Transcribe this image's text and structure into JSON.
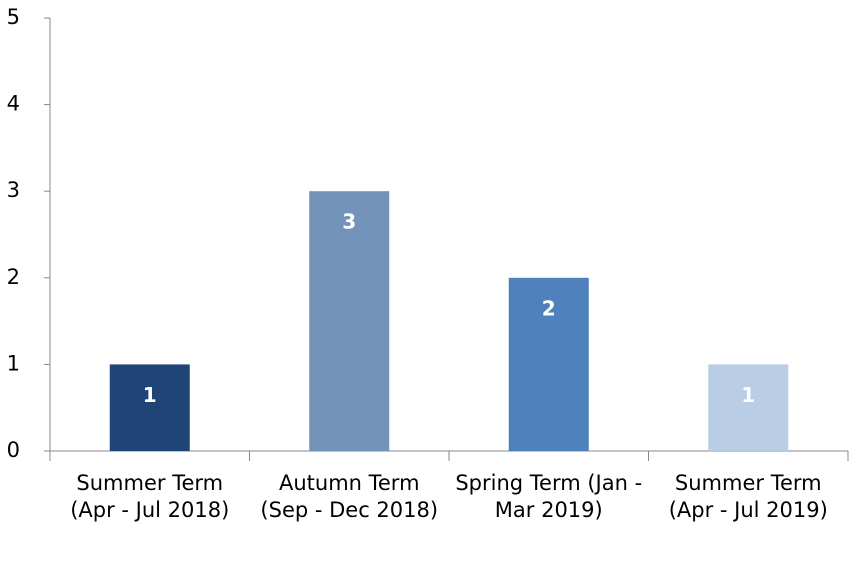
{
  "chart_data": {
    "type": "bar",
    "categories": [
      "Summer Term (Apr - Jul 2018)",
      "Autumn Term (Sep - Dec 2018)",
      "Spring Term (Jan - Mar 2019)",
      "Summer Term (Apr - Jul 2019)"
    ],
    "values": [
      1,
      3,
      2,
      1
    ],
    "colors": [
      "#1f4476",
      "#7393bb",
      "#4f81bd",
      "#b9cde5"
    ],
    "ylim": [
      0,
      5
    ],
    "yticks": [
      0,
      1,
      2,
      3,
      4,
      5
    ],
    "grid": false
  }
}
